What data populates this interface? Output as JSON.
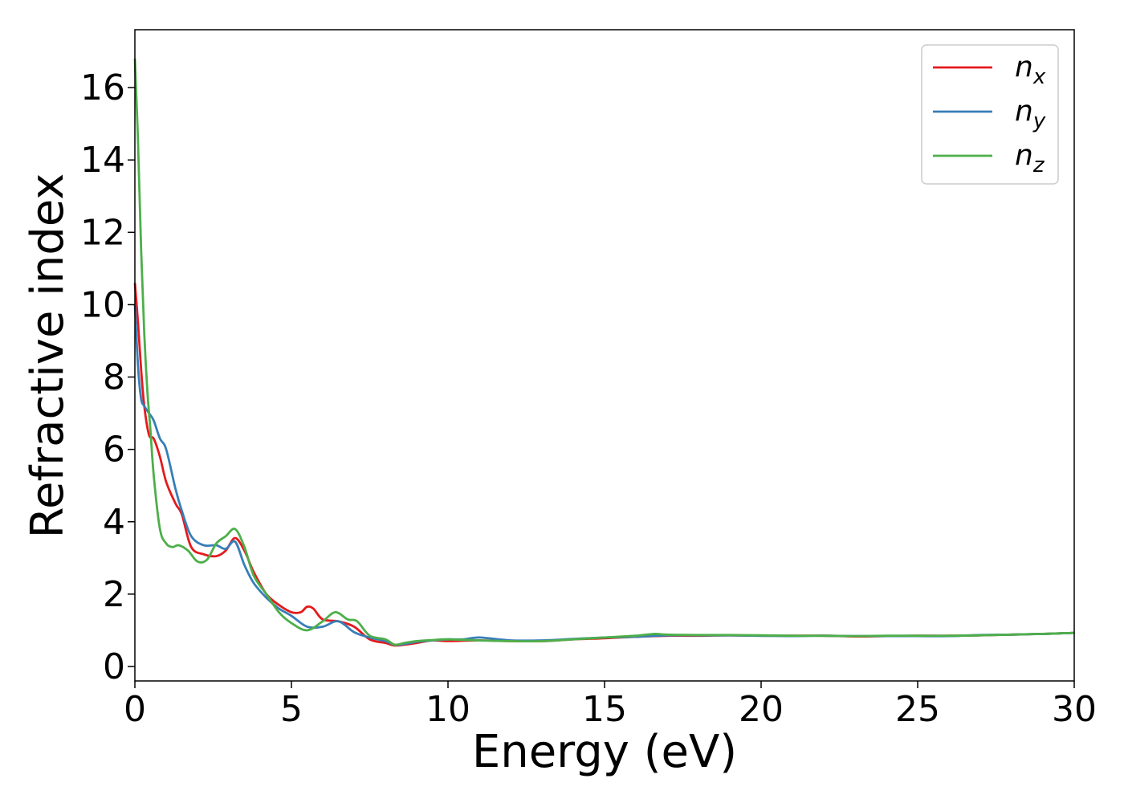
{
  "chart_data": {
    "type": "line",
    "title": "",
    "xlabel": "Energy (eV)",
    "ylabel": "Refractive index",
    "xlim": [
      0,
      30
    ],
    "ylim": [
      -0.4,
      17.6
    ],
    "xticks": [
      0,
      5,
      10,
      15,
      20,
      25,
      30
    ],
    "yticks": [
      0,
      2,
      4,
      6,
      8,
      10,
      12,
      14,
      16
    ],
    "grid": false,
    "legend_position": "top-right",
    "series": [
      {
        "name": "n",
        "sub": "x",
        "color": "#e41a1c",
        "x": [
          0,
          0.1,
          0.2,
          0.3,
          0.45,
          0.6,
          0.8,
          1.0,
          1.3,
          1.5,
          1.8,
          2.2,
          2.6,
          2.9,
          3.2,
          3.5,
          3.8,
          4.2,
          4.6,
          5.0,
          5.3,
          5.5,
          5.7,
          6.0,
          6.5,
          7.0,
          7.5,
          8.0,
          8.3,
          8.6,
          9.0,
          9.5,
          10,
          11,
          12,
          13,
          14,
          15,
          16,
          17,
          18,
          19,
          20,
          21,
          22,
          23,
          24,
          25,
          26,
          27,
          28,
          29,
          30
        ],
        "y": [
          10.6,
          9.5,
          8.2,
          7.2,
          6.4,
          6.3,
          5.8,
          5.1,
          4.5,
          4.2,
          3.3,
          3.1,
          3.05,
          3.2,
          3.55,
          3.2,
          2.6,
          2.0,
          1.7,
          1.5,
          1.5,
          1.65,
          1.6,
          1.3,
          1.25,
          1.1,
          0.75,
          0.65,
          0.58,
          0.6,
          0.65,
          0.72,
          0.7,
          0.72,
          0.7,
          0.7,
          0.75,
          0.78,
          0.82,
          0.85,
          0.85,
          0.86,
          0.85,
          0.85,
          0.85,
          0.83,
          0.84,
          0.85,
          0.85,
          0.86,
          0.88,
          0.9,
          0.93
        ]
      },
      {
        "name": "n",
        "sub": "y",
        "color": "#377eb8",
        "x": [
          0,
          0.1,
          0.2,
          0.3,
          0.45,
          0.6,
          0.8,
          1.0,
          1.3,
          1.5,
          1.8,
          2.2,
          2.6,
          2.9,
          3.2,
          3.5,
          3.8,
          4.2,
          4.6,
          5.0,
          5.5,
          6.0,
          6.5,
          7.0,
          7.5,
          8.0,
          8.3,
          8.6,
          9.0,
          9.5,
          10,
          10.5,
          11,
          12,
          13,
          14,
          15,
          16,
          17,
          18,
          19,
          20,
          21,
          22,
          23,
          24,
          25,
          26,
          27,
          28,
          29,
          30
        ],
        "y": [
          10.0,
          8.3,
          7.4,
          7.2,
          7.0,
          6.8,
          6.3,
          6.0,
          4.9,
          4.3,
          3.6,
          3.35,
          3.35,
          3.25,
          3.45,
          2.8,
          2.3,
          1.9,
          1.6,
          1.4,
          1.1,
          1.1,
          1.25,
          0.95,
          0.8,
          0.7,
          0.6,
          0.62,
          0.68,
          0.72,
          0.75,
          0.75,
          0.8,
          0.72,
          0.72,
          0.76,
          0.8,
          0.82,
          0.86,
          0.86,
          0.86,
          0.85,
          0.84,
          0.85,
          0.84,
          0.84,
          0.84,
          0.84,
          0.87,
          0.88,
          0.9,
          0.93
        ]
      },
      {
        "name": "n",
        "sub": "z",
        "color": "#4daf4a",
        "x": [
          0,
          0.1,
          0.2,
          0.3,
          0.4,
          0.5,
          0.6,
          0.8,
          1.0,
          1.2,
          1.4,
          1.7,
          2.0,
          2.3,
          2.6,
          2.9,
          3.2,
          3.5,
          3.8,
          4.2,
          4.6,
          5.0,
          5.5,
          6.0,
          6.4,
          6.8,
          7.1,
          7.5,
          8.0,
          8.3,
          8.6,
          9.0,
          9.5,
          10,
          11,
          12,
          13,
          14,
          15,
          16,
          16.6,
          17,
          18,
          19,
          20,
          21,
          22,
          23,
          24,
          25,
          26,
          27,
          28,
          29,
          30
        ],
        "y": [
          16.8,
          14.5,
          11.5,
          9.2,
          7.6,
          6.5,
          5.3,
          3.8,
          3.4,
          3.3,
          3.35,
          3.2,
          2.9,
          2.95,
          3.4,
          3.6,
          3.8,
          3.3,
          2.5,
          2.0,
          1.5,
          1.2,
          1.0,
          1.25,
          1.5,
          1.3,
          1.25,
          0.85,
          0.75,
          0.6,
          0.65,
          0.7,
          0.73,
          0.75,
          0.72,
          0.7,
          0.7,
          0.75,
          0.8,
          0.85,
          0.9,
          0.88,
          0.87,
          0.87,
          0.86,
          0.85,
          0.85,
          0.84,
          0.85,
          0.85,
          0.85,
          0.86,
          0.88,
          0.9,
          0.93
        ]
      }
    ]
  }
}
